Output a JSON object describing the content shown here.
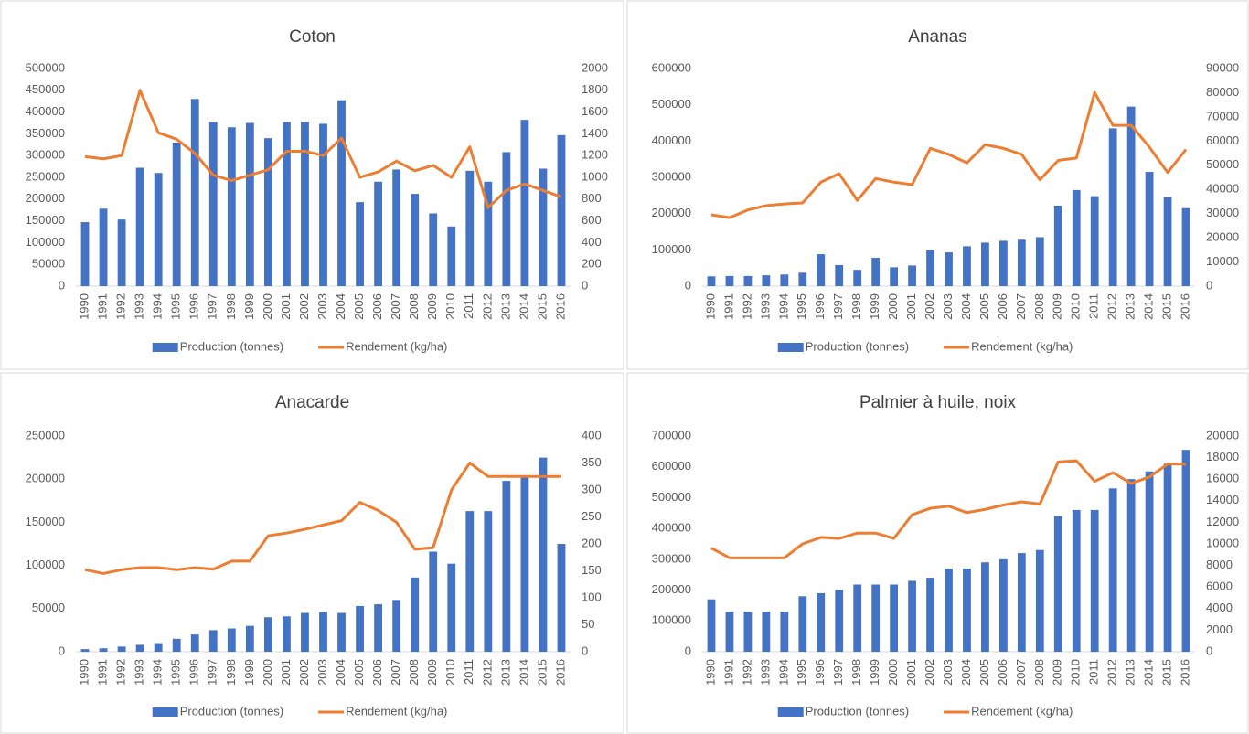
{
  "chart_data": [
    {
      "type": "combo",
      "title": "Coton",
      "categories": [
        "1990",
        "1991",
        "1992",
        "1993",
        "1994",
        "1995",
        "1996",
        "1997",
        "1998",
        "1999",
        "2000",
        "2001",
        "2002",
        "2003",
        "2004",
        "2005",
        "2006",
        "2007",
        "2008",
        "2009",
        "2010",
        "2011",
        "2012",
        "2013",
        "2014",
        "2015",
        "2016"
      ],
      "series": [
        {
          "name": "Production (tonnes)",
          "type": "bar",
          "color": "#4472c4",
          "values": [
            147000,
            178000,
            153000,
            272000,
            260000,
            330000,
            430000,
            377000,
            365000,
            375000,
            340000,
            377000,
            377000,
            373000,
            427000,
            193000,
            240000,
            268000,
            212000,
            167000,
            137000,
            265000,
            240000,
            308000,
            382000,
            270000,
            347000
          ]
        },
        {
          "name": "Rendement (kg/ha)",
          "type": "line",
          "axis": "y2",
          "color": "#ed7d31",
          "values": [
            1190,
            1170,
            1200,
            1800,
            1410,
            1350,
            1220,
            1020,
            970,
            1020,
            1070,
            1240,
            1240,
            1200,
            1360,
            1000,
            1050,
            1150,
            1060,
            1110,
            1000,
            1280,
            720,
            880,
            940,
            880,
            820
          ]
        }
      ],
      "ylim": [
        0,
        500000
      ],
      "yticks": [
        0,
        50000,
        100000,
        150000,
        200000,
        250000,
        300000,
        350000,
        400000,
        450000,
        500000
      ],
      "y2lim": [
        0,
        2000
      ],
      "y2ticks": [
        0,
        200,
        400,
        600,
        800,
        1000,
        1200,
        1400,
        1600,
        1800,
        2000
      ],
      "legend": "bottom"
    },
    {
      "type": "combo",
      "title": "Ananas",
      "categories": [
        "1990",
        "1991",
        "1992",
        "1993",
        "1994",
        "1995",
        "1996",
        "1997",
        "1998",
        "1999",
        "2000",
        "2001",
        "2002",
        "2003",
        "2004",
        "2005",
        "2006",
        "2007",
        "2008",
        "2009",
        "2010",
        "2011",
        "2012",
        "2013",
        "2014",
        "2015",
        "2016"
      ],
      "series": [
        {
          "name": "Production (tonnes)",
          "type": "bar",
          "color": "#4472c4",
          "values": [
            27000,
            28000,
            28000,
            30000,
            32000,
            37000,
            88000,
            58000,
            45000,
            78000,
            52000,
            57000,
            100000,
            93000,
            110000,
            120000,
            125000,
            128000,
            135000,
            222000,
            265000,
            248000,
            435000,
            495000,
            315000,
            245000,
            215000
          ]
        },
        {
          "name": "Rendement (kg/ha)",
          "type": "line",
          "axis": "y2",
          "color": "#ed7d31",
          "values": [
            29500,
            28300,
            31500,
            33300,
            34000,
            34400,
            43000,
            46500,
            35500,
            44500,
            43000,
            42000,
            57000,
            54500,
            51000,
            58500,
            57000,
            54500,
            44000,
            52000,
            53000,
            80000,
            66500,
            66500,
            57500,
            47000,
            56500
          ]
        }
      ],
      "ylim": [
        0,
        600000
      ],
      "yticks": [
        0,
        100000,
        200000,
        300000,
        400000,
        500000,
        600000
      ],
      "y2lim": [
        0,
        90000
      ],
      "y2ticks": [
        0,
        10000,
        20000,
        30000,
        40000,
        50000,
        60000,
        70000,
        80000,
        90000
      ],
      "legend": "bottom"
    },
    {
      "type": "combo",
      "title": "Anacarde",
      "categories": [
        "1990",
        "1991",
        "1992",
        "1993",
        "1994",
        "1995",
        "1996",
        "1997",
        "1998",
        "1999",
        "2000",
        "2001",
        "2002",
        "2003",
        "2004",
        "2005",
        "2006",
        "2007",
        "2008",
        "2009",
        "2010",
        "2011",
        "2012",
        "2013",
        "2014",
        "2015",
        "2016"
      ],
      "series": [
        {
          "name": "Production (tonnes)",
          "type": "bar",
          "color": "#4472c4",
          "values": [
            3000,
            4000,
            6000,
            8000,
            10000,
            15000,
            20000,
            25000,
            27000,
            30000,
            40000,
            41000,
            45000,
            46000,
            45000,
            53000,
            55000,
            60000,
            86000,
            116000,
            102000,
            163000,
            163000,
            198000,
            202000,
            225000,
            125000
          ]
        },
        {
          "name": "Rendement (kg/ha)",
          "type": "line",
          "axis": "y2",
          "color": "#ed7d31",
          "values": [
            152,
            145,
            152,
            156,
            156,
            152,
            156,
            153,
            168,
            168,
            215,
            220,
            227,
            235,
            243,
            277,
            262,
            240,
            190,
            193,
            300,
            350,
            325,
            325,
            325,
            325,
            325
          ]
        }
      ],
      "ylim": [
        0,
        250000
      ],
      "yticks": [
        0,
        50000,
        100000,
        150000,
        200000,
        250000
      ],
      "y2lim": [
        0,
        400
      ],
      "y2ticks": [
        0,
        50,
        100,
        150,
        200,
        250,
        300,
        350,
        400
      ],
      "legend": "bottom"
    },
    {
      "type": "combo",
      "title": "Palmier à huile, noix",
      "categories": [
        "1990",
        "1991",
        "1992",
        "1993",
        "1994",
        "1995",
        "1996",
        "1997",
        "1998",
        "1999",
        "2000",
        "2001",
        "2002",
        "2003",
        "2004",
        "2005",
        "2006",
        "2007",
        "2008",
        "2009",
        "2010",
        "2011",
        "2012",
        "2013",
        "2014",
        "2015",
        "2016"
      ],
      "series": [
        {
          "name": "Production (tonnes)",
          "type": "bar",
          "color": "#4472c4",
          "values": [
            170000,
            130000,
            130000,
            130000,
            130000,
            180000,
            190000,
            200000,
            218000,
            218000,
            218000,
            230000,
            240000,
            270000,
            270000,
            290000,
            300000,
            320000,
            330000,
            440000,
            460000,
            460000,
            530000,
            560000,
            585000,
            610000,
            655000
          ]
        },
        {
          "name": "Rendement (kg/ha)",
          "type": "line",
          "axis": "y2",
          "color": "#ed7d31",
          "values": [
            9600,
            8700,
            8700,
            8700,
            8700,
            10000,
            10600,
            10500,
            11000,
            11000,
            10500,
            12700,
            13300,
            13500,
            12900,
            13200,
            13600,
            13900,
            13700,
            17600,
            17700,
            15800,
            16600,
            15600,
            16200,
            17400,
            17400
          ]
        }
      ],
      "ylim": [
        0,
        700000
      ],
      "yticks": [
        0,
        100000,
        200000,
        300000,
        400000,
        500000,
        600000,
        700000
      ],
      "y2lim": [
        0,
        20000
      ],
      "y2ticks": [
        0,
        2000,
        4000,
        6000,
        8000,
        10000,
        12000,
        14000,
        16000,
        18000,
        20000
      ],
      "legend": "bottom"
    }
  ]
}
